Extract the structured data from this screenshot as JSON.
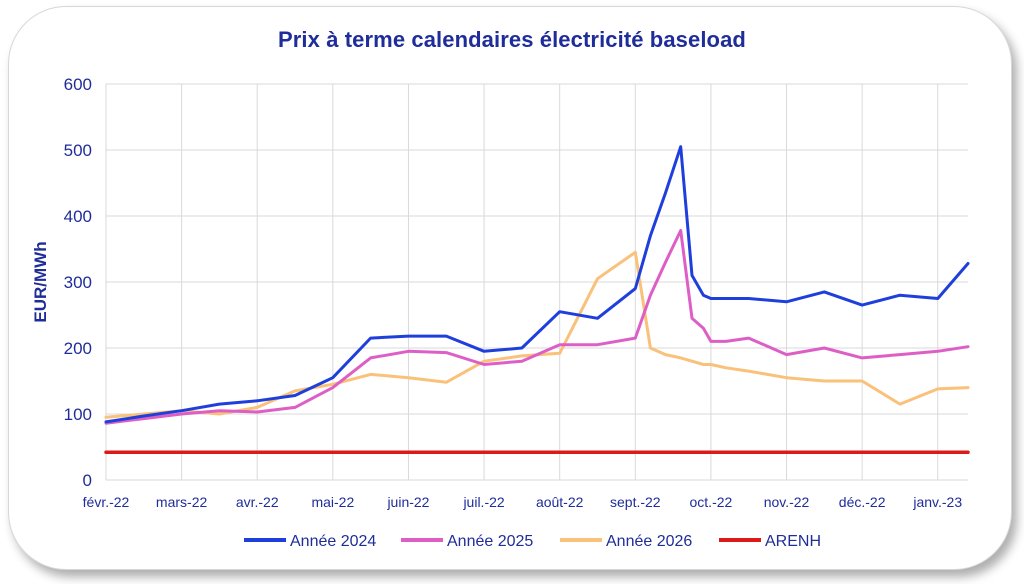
{
  "chart_data": {
    "type": "line",
    "title": "Prix à terme calendaires électricité baseload",
    "ylabel": "EUR/MWh",
    "xlabel": "",
    "ylim": [
      0,
      600
    ],
    "yticks": [
      "0",
      "100",
      "200",
      "300",
      "400",
      "500",
      "600"
    ],
    "xticks": [
      "févr.-22",
      "mars-22",
      "avr.-22",
      "mai-22",
      "juin-22",
      "juil.-22",
      "août-22",
      "sept.-22",
      "oct.-22",
      "nov.-22",
      "déc.-22",
      "janv.-23"
    ],
    "x_months_from_feb22": [
      0,
      0.5,
      1,
      1.5,
      2,
      2.5,
      3,
      3.5,
      4,
      4.5,
      5,
      5.5,
      6,
      6.5,
      7,
      7.2,
      7.4,
      7.6,
      7.75,
      7.9,
      8.0,
      8.2,
      8.5,
      9,
      9.5,
      10,
      10.5,
      11,
      11.4
    ],
    "grid": true,
    "legend_position": "bottom",
    "series": [
      {
        "name": "Année 2024",
        "color": "#1f3fdc",
        "values": [
          88,
          97,
          105,
          115,
          120,
          128,
          155,
          215,
          218,
          218,
          195,
          200,
          255,
          245,
          290,
          370,
          435,
          505,
          310,
          280,
          275,
          275,
          275,
          270,
          285,
          265,
          280,
          275,
          328
        ]
      },
      {
        "name": "Année 2025",
        "color": "#dd5fc6",
        "values": [
          86,
          93,
          100,
          105,
          103,
          110,
          140,
          185,
          195,
          193,
          175,
          180,
          205,
          205,
          215,
          280,
          330,
          378,
          245,
          230,
          210,
          210,
          215,
          190,
          200,
          185,
          190,
          195,
          202
        ]
      },
      {
        "name": "Année 2026",
        "color": "#f9c179",
        "values": [
          95,
          100,
          105,
          100,
          110,
          135,
          145,
          160,
          155,
          148,
          180,
          188,
          192,
          305,
          345,
          200,
          190,
          185,
          180,
          175,
          175,
          170,
          165,
          155,
          150,
          150,
          115,
          138,
          140
        ]
      },
      {
        "name": "ARENH",
        "color": "#dc1a1a",
        "values": [
          42,
          42,
          42,
          42,
          42,
          42,
          42,
          42,
          42,
          42,
          42,
          42,
          42,
          42,
          42,
          42,
          42,
          42,
          42,
          42,
          42,
          42,
          42,
          42,
          42,
          42,
          42,
          42,
          42
        ]
      }
    ]
  }
}
